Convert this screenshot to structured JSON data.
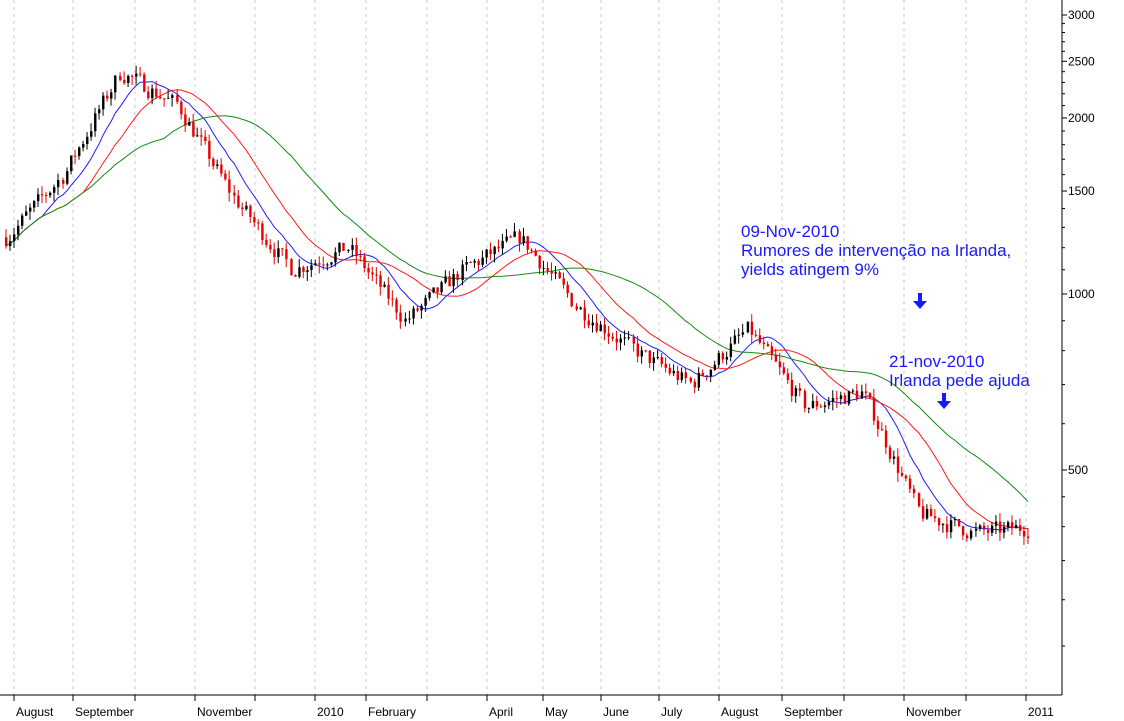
{
  "chart_data": {
    "type": "candlestick",
    "y_scale": "log",
    "ylim": [
      140,
      3200
    ],
    "y_ticks": [
      500,
      1000,
      1500,
      2000,
      2500,
      3000
    ],
    "y_tick_labels": [
      "500",
      "1000",
      "1500",
      "2000",
      "2500",
      "3000"
    ],
    "x_labels": [
      "August",
      "September",
      "November",
      "2010",
      "February",
      "April",
      "May",
      "June",
      "July",
      "August",
      "September",
      "November",
      "2011"
    ],
    "grid": "vertical dotted",
    "price": [
      {
        "x": "Jul-2009",
        "y": 1250
      },
      {
        "x": "Aug-2009",
        "y": 1600
      },
      {
        "x": "Sep-2009",
        "y": 2400
      },
      {
        "x": "Oct-2009",
        "y": 2100
      },
      {
        "x": "Nov-2009",
        "y": 1450
      },
      {
        "x": "Dec-2009",
        "y": 1100
      },
      {
        "x": "Jan-2010",
        "y": 1200
      },
      {
        "x": "Feb-2010",
        "y": 900
      },
      {
        "x": "Mar-2010",
        "y": 1100
      },
      {
        "x": "Apr-2010",
        "y": 1250
      },
      {
        "x": "May-2010",
        "y": 950
      },
      {
        "x": "Jun-2010",
        "y": 800
      },
      {
        "x": "Jul-2010",
        "y": 700
      },
      {
        "x": "Aug-2010",
        "y": 870
      },
      {
        "x": "Sep-2010",
        "y": 640
      },
      {
        "x": "Oct-2010",
        "y": 680
      },
      {
        "x": "Nov-2010",
        "y": 420
      },
      {
        "x": "Dec-2010",
        "y": 390
      },
      {
        "x": "Jan-2011",
        "y": 400
      }
    ],
    "series": [
      {
        "color": "#1e1eff"
      },
      {
        "color": "#ff1a1a"
      },
      {
        "color": "#128a12"
      }
    ],
    "colors": {
      "up": "#000000",
      "down": "#e60000",
      "grid": "#c8c8c8",
      "axis": "#000000"
    }
  },
  "annotations": [
    {
      "lines": [
        "09-Nov-2010",
        "Rumores de intervenção na Irlanda,",
        "yields atingem 9%"
      ]
    },
    {
      "lines": [
        "21-nov-2010",
        "Irlanda pede ajuda"
      ]
    }
  ]
}
